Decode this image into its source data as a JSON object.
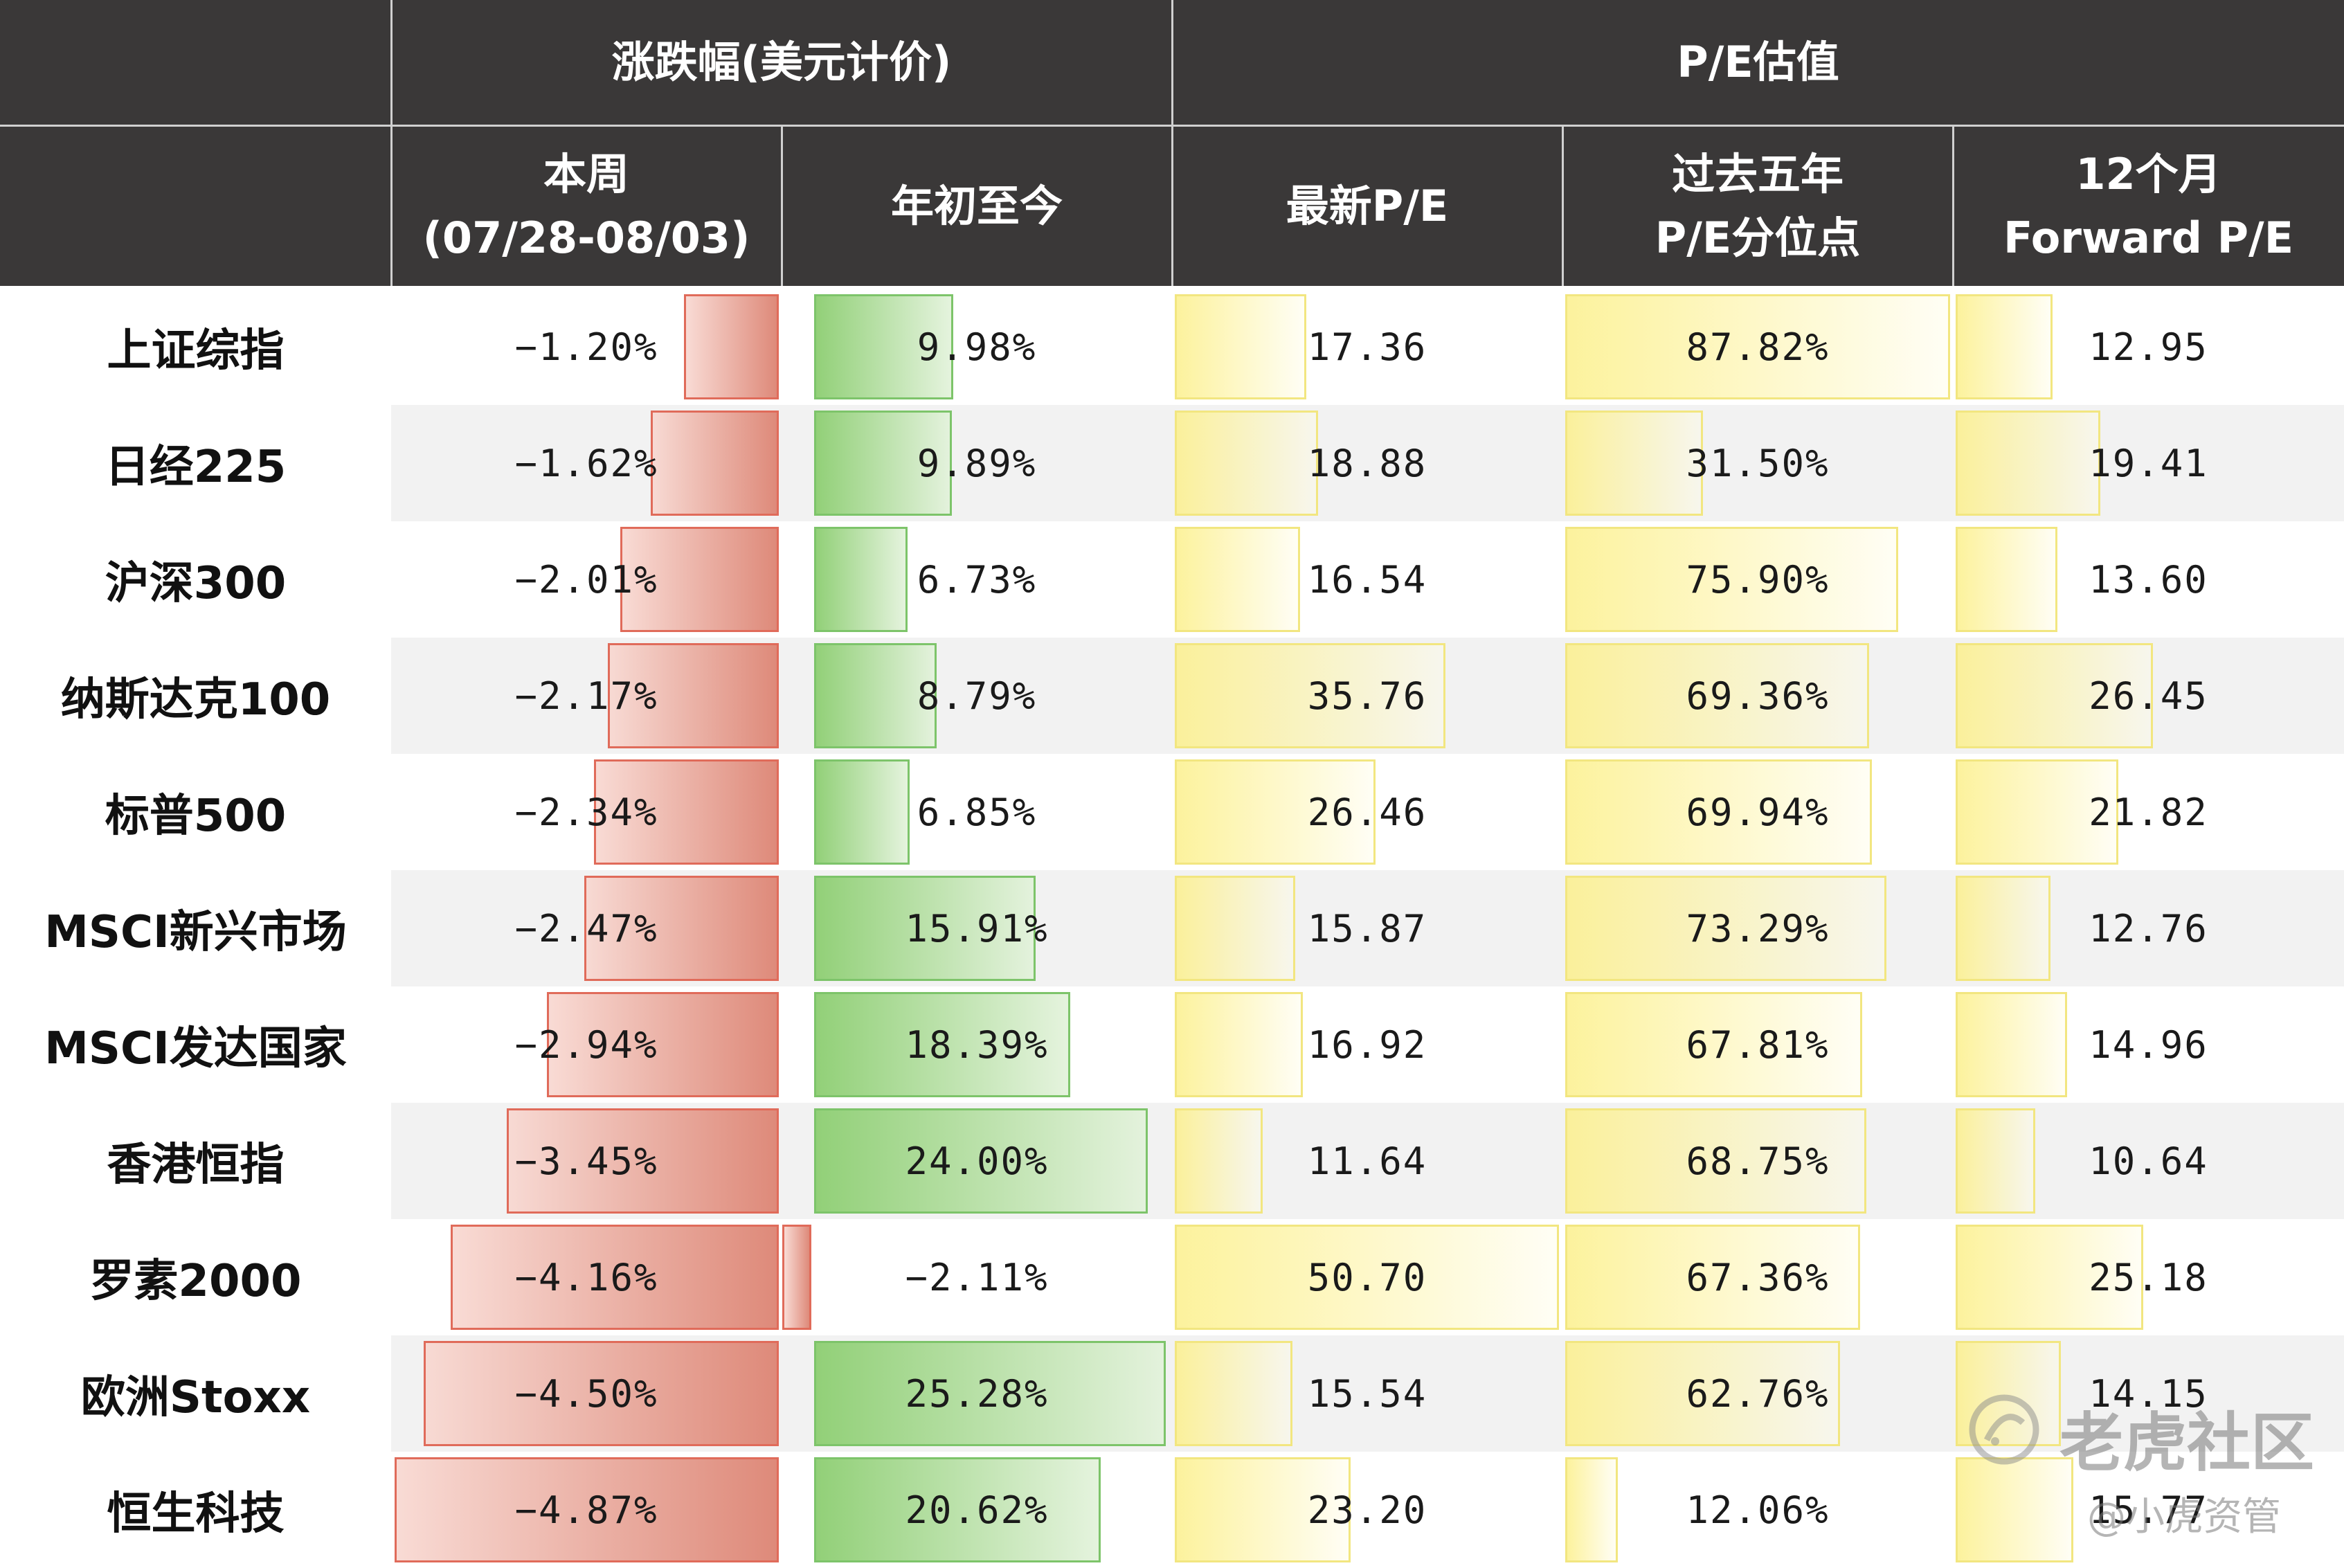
{
  "header": {
    "group_change": "涨跌幅(美元计价)",
    "group_pe": "P/E估值",
    "col_week_line1": "本周",
    "col_week_line2": "(07/28-08/03)",
    "col_ytd": "年初至今",
    "col_latest_pe": "最新P/E",
    "col_pct_line1": "过去五年",
    "col_pct_line2": "P/E分位点",
    "col_fwd_line1": "12个月",
    "col_fwd_line2": "Forward  P/E"
  },
  "rows": [
    {
      "name": "上证综指",
      "week": "−1.20%",
      "week_value": -1.2,
      "ytd": "9.98%",
      "ytd_value": 9.98,
      "pe": "17.36",
      "pe_value": 17.36,
      "pct": "87.82%",
      "pct_value": 87.82,
      "fwd": "12.95",
      "fwd_value": 12.95
    },
    {
      "name": "日经225",
      "week": "−1.62%",
      "week_value": -1.62,
      "ytd": "9.89%",
      "ytd_value": 9.89,
      "pe": "18.88",
      "pe_value": 18.88,
      "pct": "31.50%",
      "pct_value": 31.5,
      "fwd": "19.41",
      "fwd_value": 19.41
    },
    {
      "name": "沪深300",
      "week": "−2.01%",
      "week_value": -2.01,
      "ytd": "6.73%",
      "ytd_value": 6.73,
      "pe": "16.54",
      "pe_value": 16.54,
      "pct": "75.90%",
      "pct_value": 75.9,
      "fwd": "13.60",
      "fwd_value": 13.6
    },
    {
      "name": "纳斯达克100",
      "week": "−2.17%",
      "week_value": -2.17,
      "ytd": "8.79%",
      "ytd_value": 8.79,
      "pe": "35.76",
      "pe_value": 35.76,
      "pct": "69.36%",
      "pct_value": 69.36,
      "fwd": "26.45",
      "fwd_value": 26.45
    },
    {
      "name": "标普500",
      "week": "−2.34%",
      "week_value": -2.34,
      "ytd": "6.85%",
      "ytd_value": 6.85,
      "pe": "26.46",
      "pe_value": 26.46,
      "pct": "69.94%",
      "pct_value": 69.94,
      "fwd": "21.82",
      "fwd_value": 21.82
    },
    {
      "name": "MSCI新兴市场",
      "week": "−2.47%",
      "week_value": -2.47,
      "ytd": "15.91%",
      "ytd_value": 15.91,
      "pe": "15.87",
      "pe_value": 15.87,
      "pct": "73.29%",
      "pct_value": 73.29,
      "fwd": "12.76",
      "fwd_value": 12.76
    },
    {
      "name": "MSCI发达国家",
      "week": "−2.94%",
      "week_value": -2.94,
      "ytd": "18.39%",
      "ytd_value": 18.39,
      "pe": "16.92",
      "pe_value": 16.92,
      "pct": "67.81%",
      "pct_value": 67.81,
      "fwd": "14.96",
      "fwd_value": 14.96
    },
    {
      "name": "香港恒指",
      "week": "−3.45%",
      "week_value": -3.45,
      "ytd": "24.00%",
      "ytd_value": 24.0,
      "pe": "11.64",
      "pe_value": 11.64,
      "pct": "68.75%",
      "pct_value": 68.75,
      "fwd": "10.64",
      "fwd_value": 10.64
    },
    {
      "name": "罗素2000",
      "week": "−4.16%",
      "week_value": -4.16,
      "ytd": "−2.11%",
      "ytd_value": -2.11,
      "pe": "50.70",
      "pe_value": 50.7,
      "pct": "67.36%",
      "pct_value": 67.36,
      "fwd": "25.18",
      "fwd_value": 25.18
    },
    {
      "name": "欧洲Stoxx",
      "week": "−4.50%",
      "week_value": -4.5,
      "ytd": "25.28%",
      "ytd_value": 25.28,
      "pe": "15.54",
      "pe_value": 15.54,
      "pct": "62.76%",
      "pct_value": 62.76,
      "fwd": "14.15",
      "fwd_value": 14.15
    },
    {
      "name": "恒生科技",
      "week": "−4.87%",
      "week_value": -4.87,
      "ytd": "20.62%",
      "ytd_value": 20.62,
      "pe": "23.20",
      "pe_value": 23.2,
      "pct": "12.06%",
      "pct_value": 12.06,
      "fwd": "15.77",
      "fwd_value": 15.77
    }
  ],
  "colors": {
    "header_bg": "#3a3838",
    "negative_bar": "#e06b5a",
    "positive_bar": "#7dc46a",
    "pe_bar": "#f2e680",
    "row_shade": "#f2f2f2"
  },
  "watermark": {
    "brand": "老虎社区",
    "account": "@小虎资管",
    "icon": "tiger-logo-icon"
  }
}
